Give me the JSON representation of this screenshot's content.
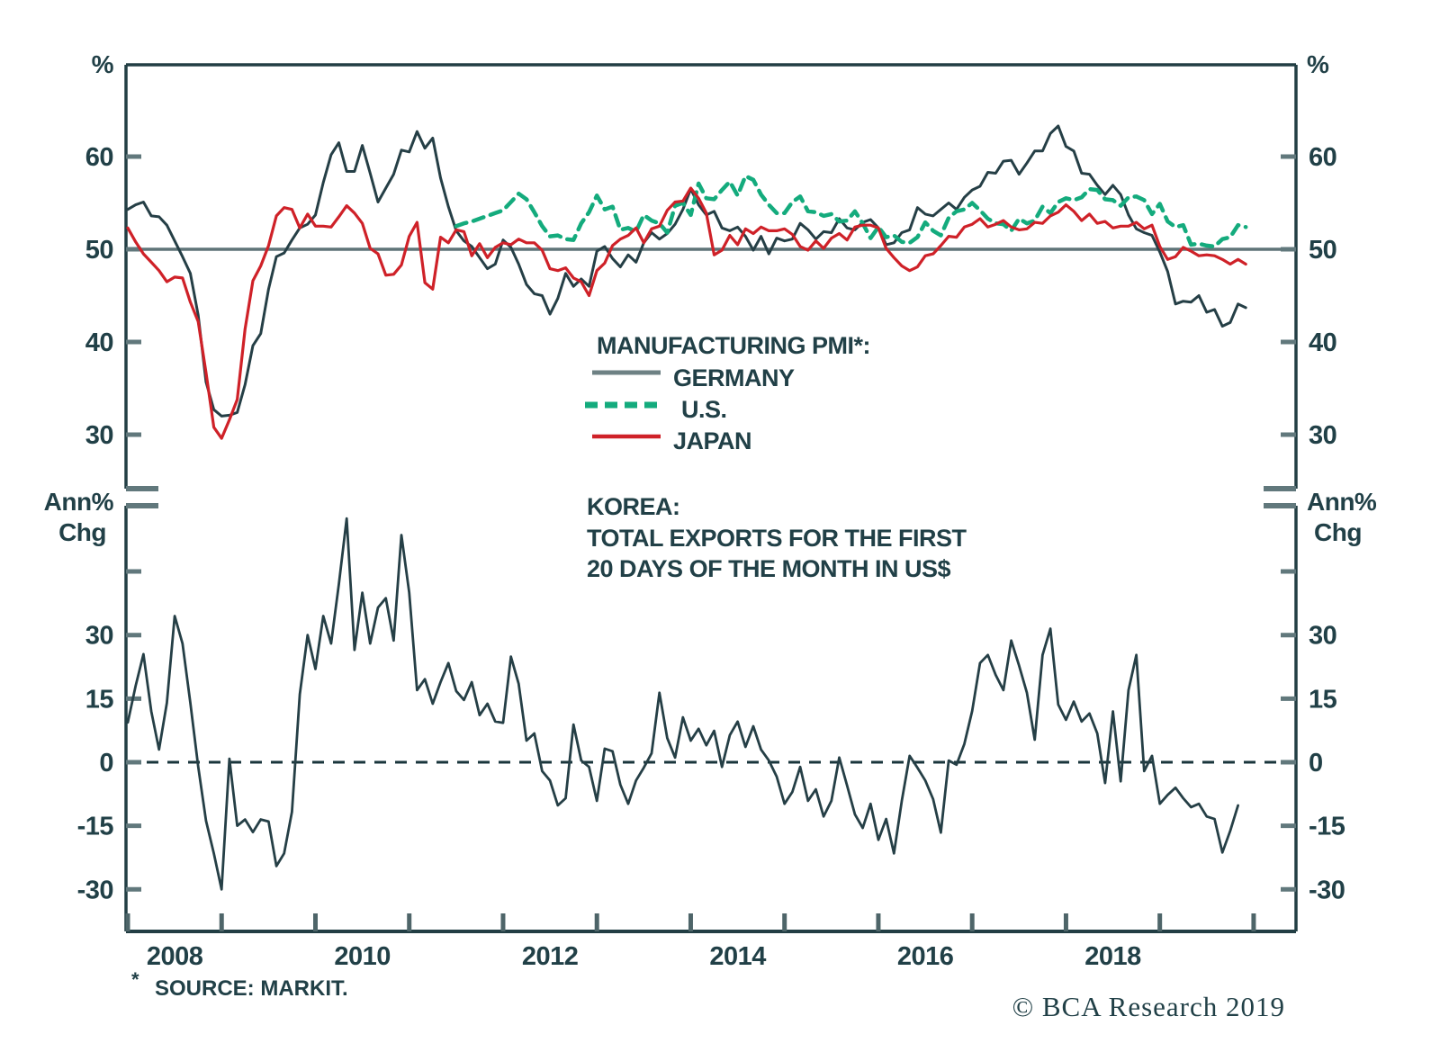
{
  "branding": {
    "copyright": "© BCA Research 2019",
    "logo_color": "#0aa98a"
  },
  "source_note": {
    "asterisk": "*",
    "text": "SOURCE: MARKIT."
  },
  "legend": {
    "title": "MANUFACTURING PMI*:",
    "items": [
      {
        "label": "GERMANY",
        "swatch_color": "#6e8184",
        "style": "solid"
      },
      {
        "label": "U.S.",
        "swatch_color": "#14ab7d",
        "style": "dashed"
      },
      {
        "label": "JAPAN",
        "swatch_color": "#cf2128",
        "style": "solid"
      }
    ]
  },
  "korea_annotation": {
    "line1": "KOREA:",
    "line2": "TOTAL EXPORTS FOR THE FIRST",
    "line3": "20 DAYS OF THE MONTH IN US$"
  },
  "axes_text": {
    "top_unit": "%",
    "bottom_unit_line1": "Ann%",
    "bottom_unit_line2": "Chg"
  },
  "chart_data": [
    {
      "type": "line",
      "title": "Manufacturing PMI",
      "x_start": "2008-01",
      "frequency": "monthly",
      "x_tick_years": [
        2008,
        2009,
        2010,
        2011,
        2012,
        2013,
        2014,
        2015,
        2016,
        2017,
        2018,
        2019,
        2020
      ],
      "x_label_years": [
        "2008",
        "2010",
        "2012",
        "2014",
        "2016",
        "2018"
      ],
      "ylim": [
        24,
        70
      ],
      "yticks": [
        30,
        40,
        50,
        60
      ],
      "refline": 50,
      "refline_style": "solid",
      "grid": false,
      "legend_position": "center",
      "series": [
        {
          "name": "GERMANY",
          "color": "#253f46",
          "dash": "solid",
          "values": [
            54.3,
            54.8,
            55.1,
            53.6,
            53.5,
            52.6,
            50.9,
            49.2,
            47.4,
            42.9,
            35.7,
            32.7,
            32.0,
            32.1,
            32.4,
            35.4,
            39.6,
            40.9,
            45.7,
            49.2,
            49.6,
            51.0,
            52.3,
            52.7,
            53.7,
            57.2,
            60.2,
            61.5,
            58.4,
            58.4,
            61.2,
            58.2,
            55.1,
            56.6,
            58.1,
            60.7,
            60.5,
            62.7,
            60.9,
            62.0,
            57.7,
            54.6,
            52.0,
            50.9,
            50.3,
            49.1,
            47.9,
            48.4,
            51.0,
            50.2,
            48.4,
            46.2,
            45.2,
            45.0,
            43.0,
            44.7,
            47.4,
            46.0,
            46.8,
            46.0,
            49.8,
            50.3,
            49.0,
            48.1,
            49.4,
            48.6,
            50.7,
            51.8,
            51.1,
            51.7,
            52.7,
            54.3,
            56.5,
            54.8,
            53.7,
            54.1,
            52.3,
            52.0,
            52.4,
            51.4,
            49.9,
            51.4,
            49.5,
            51.2,
            50.9,
            51.1,
            52.8,
            52.1,
            51.1,
            51.9,
            51.8,
            53.3,
            52.3,
            52.1,
            52.9,
            53.2,
            52.3,
            50.5,
            50.7,
            51.8,
            52.1,
            54.5,
            53.8,
            53.6,
            54.3,
            55.0,
            54.3,
            55.6,
            56.4,
            56.8,
            58.3,
            58.2,
            59.5,
            59.6,
            58.1,
            59.3,
            60.6,
            60.6,
            62.5,
            63.3,
            61.1,
            60.6,
            58.2,
            58.1,
            56.9,
            55.9,
            56.9,
            55.9,
            53.7,
            52.2,
            51.8,
            51.5,
            49.7,
            47.6,
            44.1,
            44.4,
            44.3,
            45.0,
            43.2,
            43.5,
            41.7,
            42.1,
            44.1,
            43.7
          ]
        },
        {
          "name": "U.S.",
          "color": "#14ab7d",
          "dash": "dashed",
          "values": [
            null,
            null,
            null,
            null,
            null,
            null,
            null,
            null,
            null,
            null,
            null,
            null,
            null,
            null,
            null,
            null,
            null,
            null,
            null,
            null,
            null,
            null,
            null,
            null,
            null,
            null,
            null,
            null,
            null,
            null,
            null,
            null,
            null,
            null,
            null,
            null,
            null,
            null,
            null,
            null,
            null,
            null,
            52.5,
            52.8,
            53.0,
            53.3,
            53.6,
            53.9,
            54.2,
            55.1,
            56.0,
            55.4,
            54.0,
            52.5,
            51.4,
            51.5,
            51.1,
            51.0,
            52.8,
            54.0,
            55.8,
            54.3,
            54.6,
            52.1,
            52.3,
            51.9,
            53.7,
            53.1,
            52.8,
            51.8,
            54.7,
            55.0,
            53.7,
            57.1,
            55.5,
            55.4,
            56.4,
            57.3,
            55.8,
            57.9,
            57.5,
            55.9,
            54.8,
            53.9,
            53.9,
            55.1,
            55.7,
            54.1,
            54.0,
            53.6,
            53.8,
            53.0,
            53.1,
            54.1,
            52.8,
            51.2,
            52.4,
            51.3,
            51.5,
            50.8,
            50.7,
            51.3,
            52.9,
            52.0,
            51.5,
            53.4,
            54.1,
            54.3,
            55.0,
            54.2,
            53.3,
            52.8,
            52.7,
            52.0,
            53.3,
            52.8,
            53.1,
            54.6,
            53.9,
            55.1,
            55.5,
            55.3,
            55.6,
            56.5,
            56.4,
            55.4,
            55.3,
            54.7,
            55.6,
            55.7,
            55.3,
            53.8,
            54.9,
            53.0,
            52.4,
            52.6,
            50.5,
            50.6,
            50.4,
            50.3,
            51.1,
            51.3,
            52.6,
            52.4
          ]
        },
        {
          "name": "JAPAN",
          "color": "#cf2128",
          "dash": "solid",
          "values": [
            52.3,
            50.8,
            49.5,
            48.6,
            47.7,
            46.5,
            47.0,
            46.9,
            44.3,
            42.2,
            36.7,
            30.8,
            29.6,
            31.6,
            33.8,
            41.4,
            46.6,
            48.2,
            50.4,
            53.6,
            54.5,
            54.3,
            52.3,
            53.8,
            52.5,
            52.5,
            52.4,
            53.5,
            54.7,
            53.9,
            52.8,
            50.1,
            49.5,
            47.2,
            47.3,
            48.3,
            51.4,
            52.9,
            46.4,
            45.7,
            51.3,
            50.7,
            52.1,
            51.9,
            49.3,
            50.6,
            49.1,
            50.2,
            50.7,
            50.5,
            51.1,
            50.7,
            50.7,
            49.9,
            47.9,
            47.7,
            48.0,
            46.9,
            46.5,
            45.0,
            47.7,
            48.5,
            50.4,
            51.1,
            51.5,
            52.3,
            50.7,
            52.2,
            52.5,
            54.2,
            55.1,
            55.2,
            56.6,
            55.5,
            53.9,
            49.4,
            49.9,
            51.5,
            50.5,
            52.2,
            51.7,
            52.4,
            52.0,
            52.0,
            52.2,
            51.6,
            50.3,
            49.9,
            50.9,
            50.1,
            51.2,
            51.7,
            51.0,
            52.4,
            52.6,
            52.6,
            52.3,
            50.1,
            49.1,
            48.2,
            47.7,
            48.1,
            49.3,
            49.5,
            50.4,
            51.4,
            51.3,
            52.4,
            52.7,
            53.3,
            52.4,
            52.7,
            53.1,
            52.4,
            52.1,
            52.2,
            52.9,
            52.8,
            53.6,
            54.0,
            54.8,
            54.1,
            53.1,
            53.8,
            52.8,
            53.0,
            52.3,
            52.5,
            52.5,
            52.9,
            52.2,
            52.6,
            50.3,
            48.9,
            49.2,
            50.2,
            49.8,
            49.3,
            49.4,
            49.3,
            48.9,
            48.4,
            48.9,
            48.4
          ]
        }
      ]
    },
    {
      "type": "line",
      "title": "Korea: total exports for the first 20 days of the month in US$",
      "x_start": "2008-01",
      "frequency": "monthly",
      "ylim": [
        -40,
        60
      ],
      "yticks": [
        -30,
        -15,
        0,
        15,
        30
      ],
      "yticks_unlabeled": [
        45
      ],
      "refline": 0,
      "refline_style": "dashed",
      "ylabel": "Ann% Chg",
      "grid": false,
      "series": [
        {
          "name": "KOREA EXPORTS YOY",
          "color": "#253f46",
          "dash": "solid",
          "values": [
            9.4,
            18,
            25.5,
            12,
            3,
            14,
            34.5,
            28,
            14,
            -1,
            -13.8,
            -21.5,
            -30,
            0.8,
            -15,
            -13.5,
            -16.5,
            -13.5,
            -14,
            -24.5,
            -21.5,
            -11.7,
            16,
            30,
            22,
            34.5,
            28,
            42,
            57.5,
            26.5,
            40,
            28,
            36.5,
            38.7,
            28.7,
            53.6,
            40,
            17,
            19.6,
            13.8,
            18.9,
            23.4,
            16.8,
            14.7,
            18.9,
            11.1,
            13.8,
            9.6,
            9.3,
            24.9,
            18.5,
            5.1,
            6.8,
            -2.1,
            -4.3,
            -10.2,
            -8.5,
            8.9,
            0.4,
            -1.1,
            -9.1,
            3.2,
            2.6,
            -5.3,
            -9.8,
            -4.3,
            -1.3,
            2.1,
            16.4,
            5.7,
            1.1,
            10.6,
            5.1,
            7.9,
            4.0,
            7.4,
            -1.1,
            6.4,
            9.6,
            3.6,
            8.5,
            3.0,
            0.4,
            -3.4,
            -9.8,
            -7.0,
            -1.1,
            -9.1,
            -6.4,
            -12.8,
            -9.1,
            1.1,
            -5.5,
            -12.3,
            -15.5,
            -9.8,
            -18.3,
            -13.4,
            -21.5,
            -9.1,
            1.5,
            -1.3,
            -4.3,
            -8.7,
            -16.6,
            0.4,
            -0.6,
            4.3,
            12.1,
            23.4,
            25.3,
            20.6,
            17.0,
            28.7,
            22.8,
            16.4,
            5.3,
            25.3,
            31.5,
            13.6,
            10.0,
            14.3,
            9.6,
            11.5,
            6.8,
            -4.9,
            12.0,
            -4.5,
            17.0,
            25.3,
            -2.1,
            1.5,
            -9.8,
            -7.7,
            -6.0,
            -8.5,
            -10.6,
            -9.8,
            -12.8,
            -13.4,
            -21.3,
            -16.2,
            -10.2
          ]
        }
      ]
    }
  ]
}
